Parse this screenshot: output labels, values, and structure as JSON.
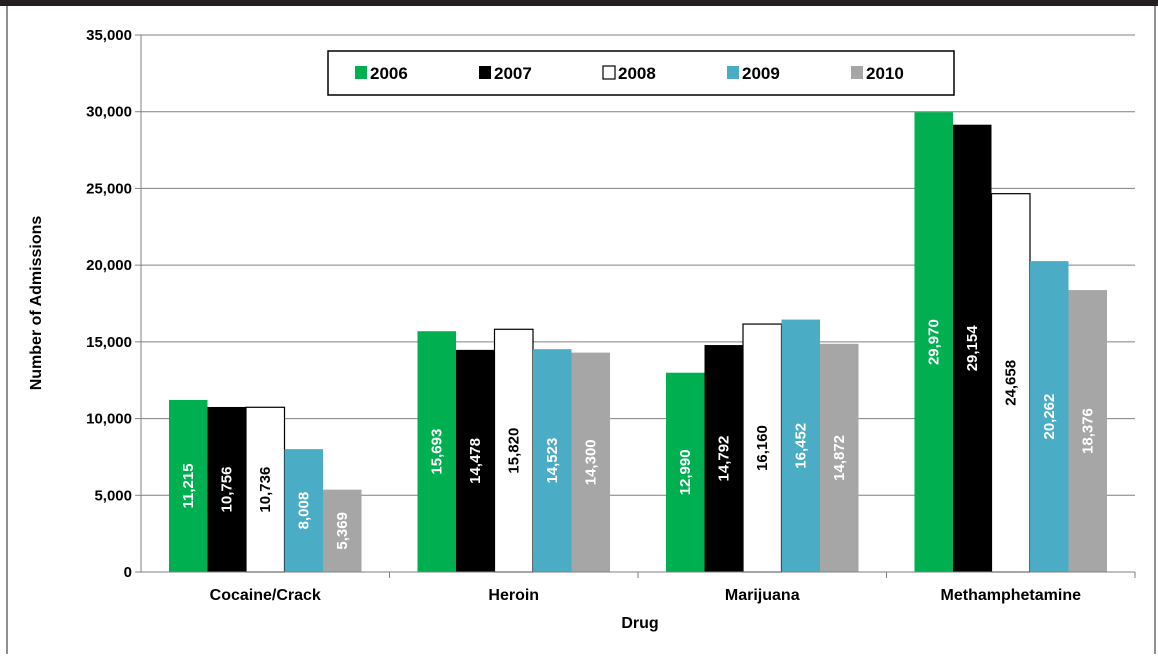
{
  "chart_data": {
    "type": "bar",
    "title": "",
    "xlabel": "Drug",
    "ylabel": "Number of Admissions",
    "ylim": [
      0,
      35000
    ],
    "yticks": [
      0,
      5000,
      10000,
      15000,
      20000,
      25000,
      30000,
      35000
    ],
    "ytick_labels": [
      "0",
      "5,000",
      "10,000",
      "15,000",
      "20,000",
      "25,000",
      "30,000",
      "35,000"
    ],
    "grid": true,
    "legend_position": "top-center",
    "categories": [
      "Cocaine/Crack",
      "Heroin",
      "Marijuana",
      "Methamphetamine"
    ],
    "series": [
      {
        "name": "2006",
        "color": "#00b050",
        "label_color": "#ffffff",
        "values": [
          11215,
          15693,
          12990,
          29970
        ],
        "labels": [
          "11,215",
          "15,693",
          "12,990",
          "29,970"
        ]
      },
      {
        "name": "2007",
        "color": "#000000",
        "label_color": "#ffffff",
        "values": [
          10756,
          14478,
          14792,
          29154
        ],
        "labels": [
          "10,756",
          "14,478",
          "14,792",
          "29,154"
        ]
      },
      {
        "name": "2008",
        "color": "#ffffff",
        "label_color": "#000000",
        "values": [
          10736,
          15820,
          16160,
          24658
        ],
        "labels": [
          "10,736",
          "15,820",
          "16,160",
          "24,658"
        ]
      },
      {
        "name": "2009",
        "color": "#4bacc6",
        "label_color": "#ffffff",
        "values": [
          8008,
          14523,
          16452,
          20262
        ],
        "labels": [
          "8,008",
          "14,523",
          "16,452",
          "20,262"
        ]
      },
      {
        "name": "2010",
        "color": "#a6a6a6",
        "label_color": "#ffffff",
        "values": [
          5369,
          14300,
          14872,
          18376
        ],
        "labels": [
          "5,369",
          "14,300",
          "14,872",
          "18,376"
        ]
      }
    ]
  }
}
